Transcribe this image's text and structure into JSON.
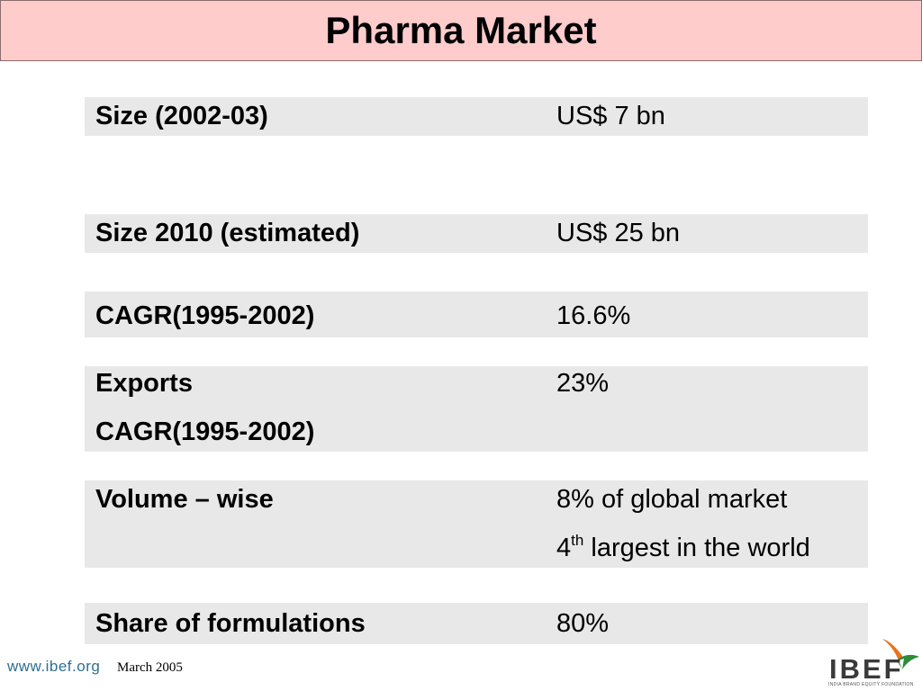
{
  "title": "Pharma Market",
  "rows": [
    {
      "label_lines": [
        "Size (2002-03)"
      ],
      "value_lines": [
        "US$ 7 bn"
      ]
    },
    {
      "label_lines": [
        "Size 2010 (estimated)"
      ],
      "value_lines": [
        "US$ 25 bn"
      ]
    },
    {
      "label_lines": [
        "CAGR(1995-2002)"
      ],
      "value_lines": [
        "16.6%"
      ]
    },
    {
      "label_lines": [
        "Exports",
        "CAGR(1995-2002)"
      ],
      "value_lines": [
        "23%"
      ]
    },
    {
      "label_lines": [
        "Volume – wise"
      ],
      "value_lines": [
        "8% of global market",
        {
          "pre": "4",
          "sup": "th",
          "post": " largest in the world"
        }
      ]
    },
    {
      "label_lines": [
        "Share of formulations"
      ],
      "value_lines": [
        "80%"
      ]
    }
  ],
  "footer": {
    "url": "www.ibef.org",
    "date": "March  2005"
  },
  "logo": {
    "text": "IBEF",
    "tagline": "INDIA BRAND EQUITY FOUNDATION",
    "colors": {
      "orange": "#e8731c",
      "green": "#2e8b3a",
      "grey": "#3a3a3a"
    }
  },
  "colors": {
    "title_bg": "#ffcccc",
    "row_bg": "#e8e8e8"
  }
}
